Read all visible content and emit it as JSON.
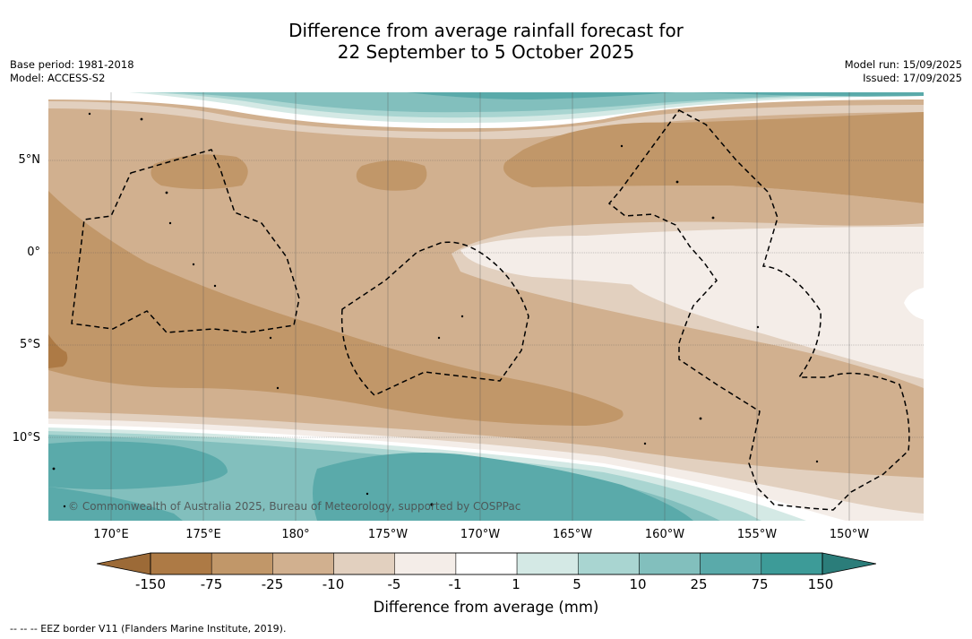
{
  "title": {
    "line1": "Difference from average rainfall forecast for",
    "line2": "22 September to 5 October 2025"
  },
  "meta": {
    "base_period": "Base period: 1981-2018",
    "model": "Model: ACCESS-S2",
    "model_run": "Model run: 15/09/2025",
    "issued": "Issued: 17/09/2025"
  },
  "map": {
    "copyright": "© Commonwealth of Australia 2025, Bureau of Meteorology, supported by COSPPac",
    "longitude_ticks": [
      "170°E",
      "175°E",
      "180°",
      "175°W",
      "170°W",
      "165°W",
      "160°W",
      "155°W",
      "150°W"
    ],
    "latitude_ticks": [
      "5°N",
      "0°",
      "5°S",
      "10°S"
    ],
    "longitude_values": [
      170,
      175,
      180,
      -175,
      -170,
      -165,
      -160,
      -155,
      -150
    ],
    "latitude_values": [
      5,
      0,
      -5,
      -10
    ]
  },
  "colorbar": {
    "label": "Difference from average (mm)",
    "ticks": [
      "-150",
      "-75",
      "-25",
      "-10",
      "-5",
      "-1",
      "1",
      "5",
      "10",
      "25",
      "75",
      "150"
    ],
    "colors": [
      "#9c6a37",
      "#ad7a45",
      "#c19769",
      "#d1b08f",
      "#e2d0bf",
      "#f4ede8",
      "#ffffff",
      "#d4e9e5",
      "#a9d5d1",
      "#82bfbd",
      "#5aaaaa",
      "#3d9b98",
      "#2b7d7a"
    ]
  },
  "footnote": "-- -- -- EEZ border V11 (Flanders Marine Institute, 2019)."
}
